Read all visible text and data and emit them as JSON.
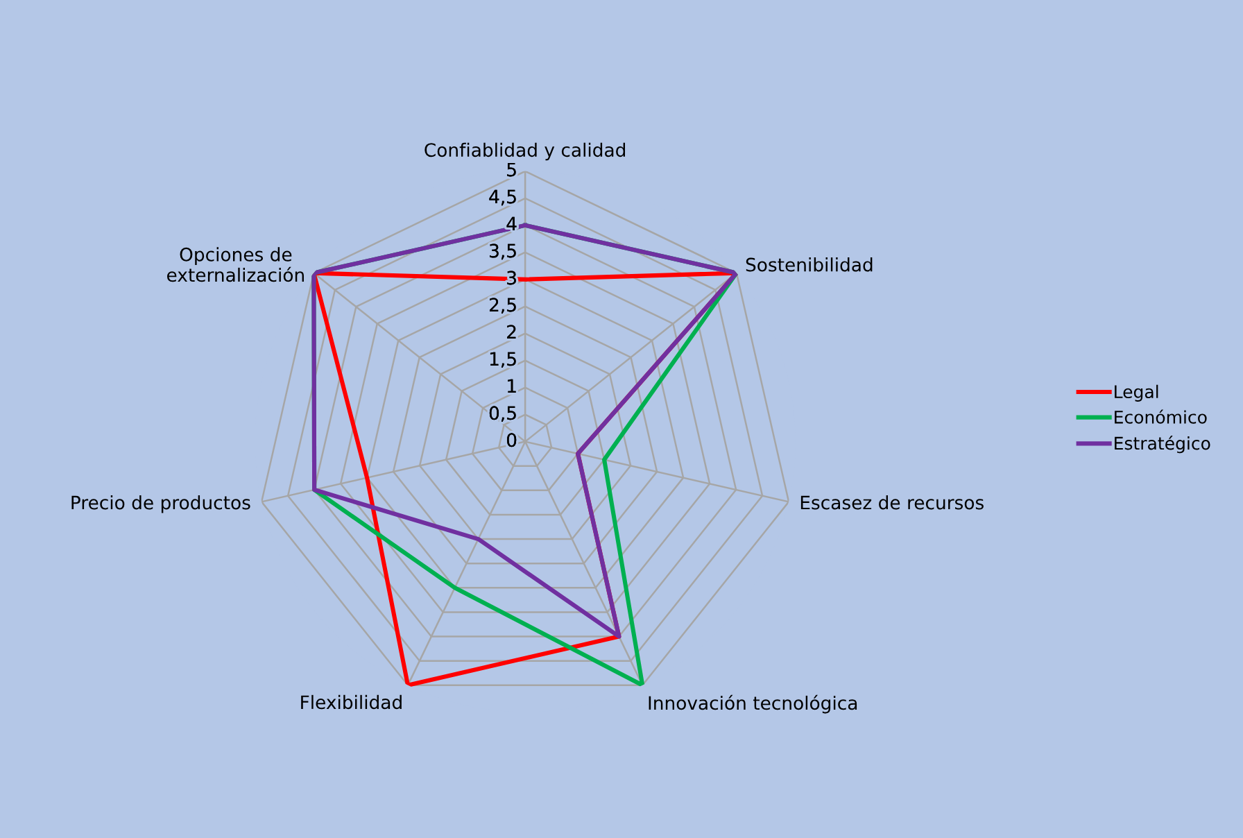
{
  "chart_data": {
    "type": "radar",
    "categories": [
      "Confiablidad y calidad",
      "Sostenibilidad",
      "Escasez de recursos",
      "Innovación tecnológica",
      "Flexibilidad",
      "Precio de productos",
      "Opciones de\nexternalización"
    ],
    "series": [
      {
        "name": "Legal",
        "color": "#ff0000",
        "values": [
          3,
          5,
          1,
          4,
          5,
          3,
          5
        ]
      },
      {
        "name": "Económico",
        "color": "#00b050",
        "values": [
          4,
          5,
          1.5,
          5,
          3,
          4,
          5
        ]
      },
      {
        "name": "Estratégico",
        "color": "#7030a0",
        "values": [
          4,
          5,
          1,
          4,
          2,
          4,
          5
        ]
      }
    ],
    "ylim": [
      0,
      5
    ],
    "yticks": [
      0,
      {
        "value": 0.5,
        "label": "0,5"
      },
      1,
      {
        "value": 1.5,
        "label": "1,5"
      },
      2,
      {
        "value": 2.5,
        "label": "2,5"
      },
      3,
      {
        "value": 3.5,
        "label": "3,5"
      },
      4,
      {
        "value": 4.5,
        "label": "4,5"
      },
      5
    ],
    "grid": true,
    "legend": "right",
    "marker": "none",
    "line_style": "solid"
  }
}
